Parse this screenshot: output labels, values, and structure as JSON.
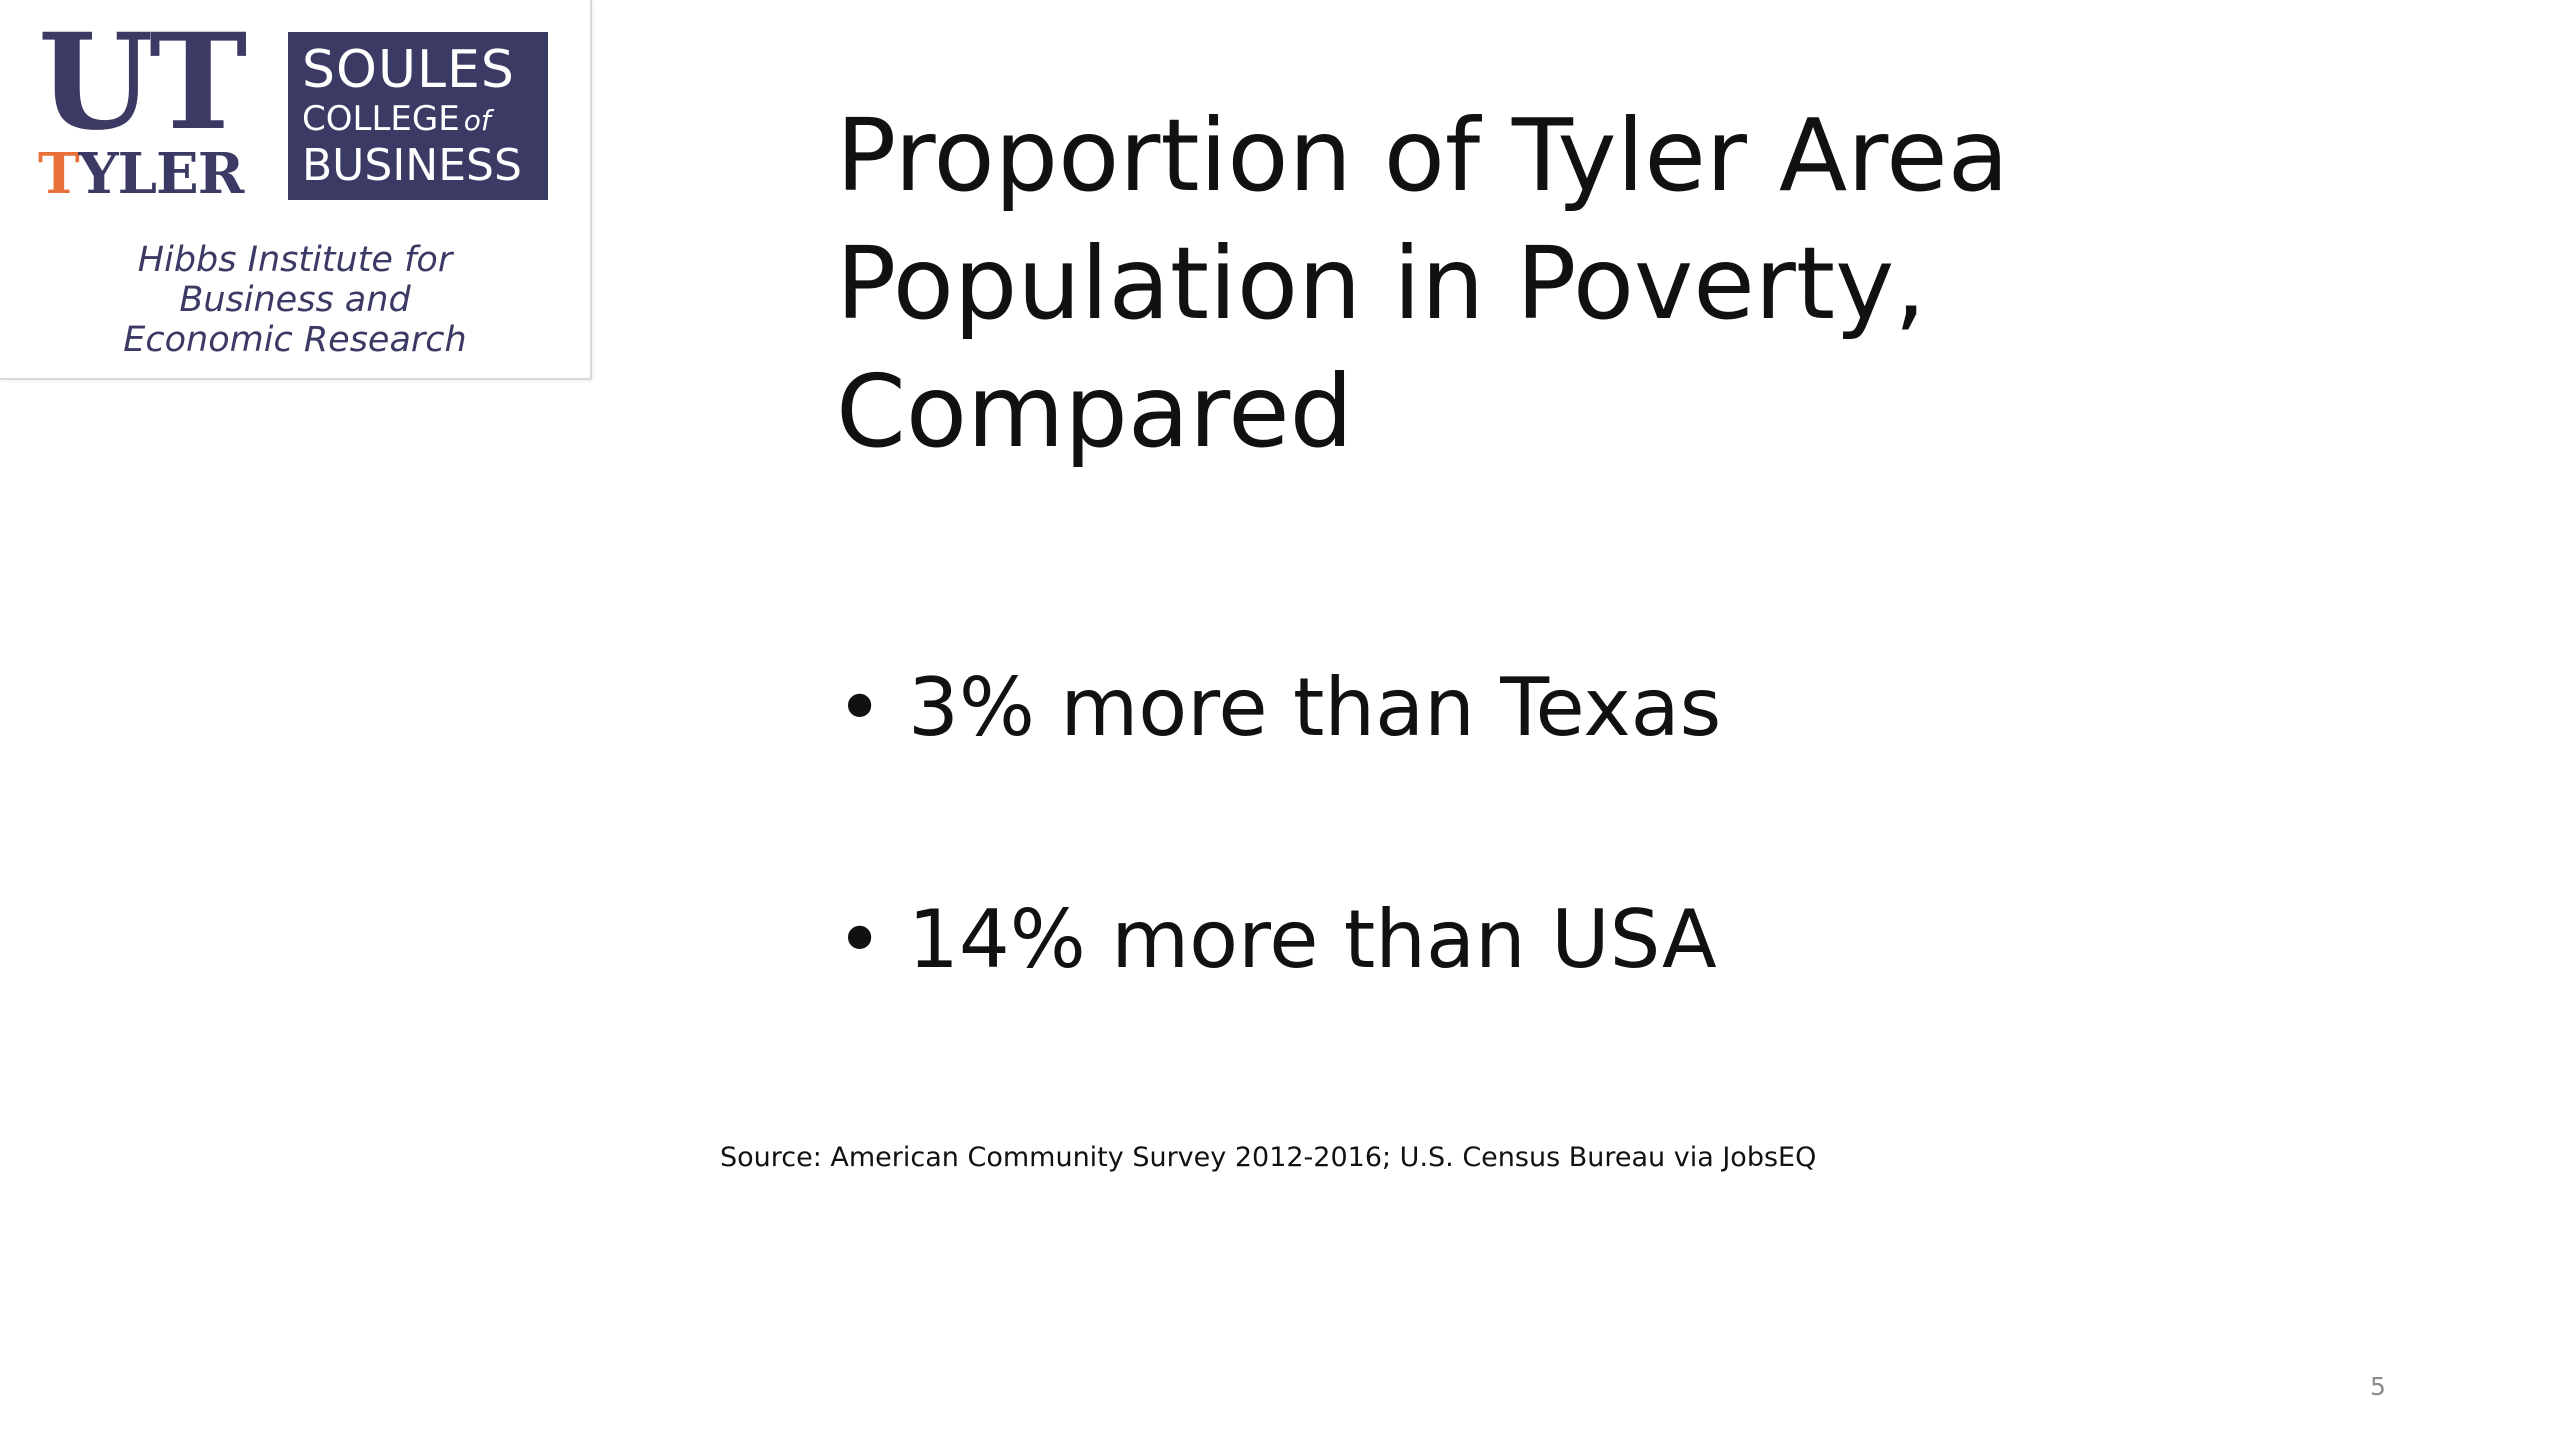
{
  "logo": {
    "ut": "UT",
    "tyler_first": "T",
    "tyler_rest": "YLER",
    "soules": "SOULES",
    "college": "COLLEGE",
    "of": "of",
    "business": "BUSINESS",
    "institute_lines": [
      "Hibbs Institute for",
      "Business and",
      "Economic Research"
    ],
    "colors": {
      "navy": "#3b3a64",
      "orange": "#e8713a"
    }
  },
  "slide": {
    "title_lines": [
      "Proportion of Tyler Area",
      "Population in Poverty,",
      "Compared"
    ],
    "bullets": [
      {
        "marker": "•",
        "text": "3% more than Texas"
      },
      {
        "marker": "•",
        "text": "14% more than USA"
      }
    ],
    "source": "Source: American Community Survey 2012-2016; U.S. Census Bureau via JobsEQ",
    "slide_number": "5"
  }
}
